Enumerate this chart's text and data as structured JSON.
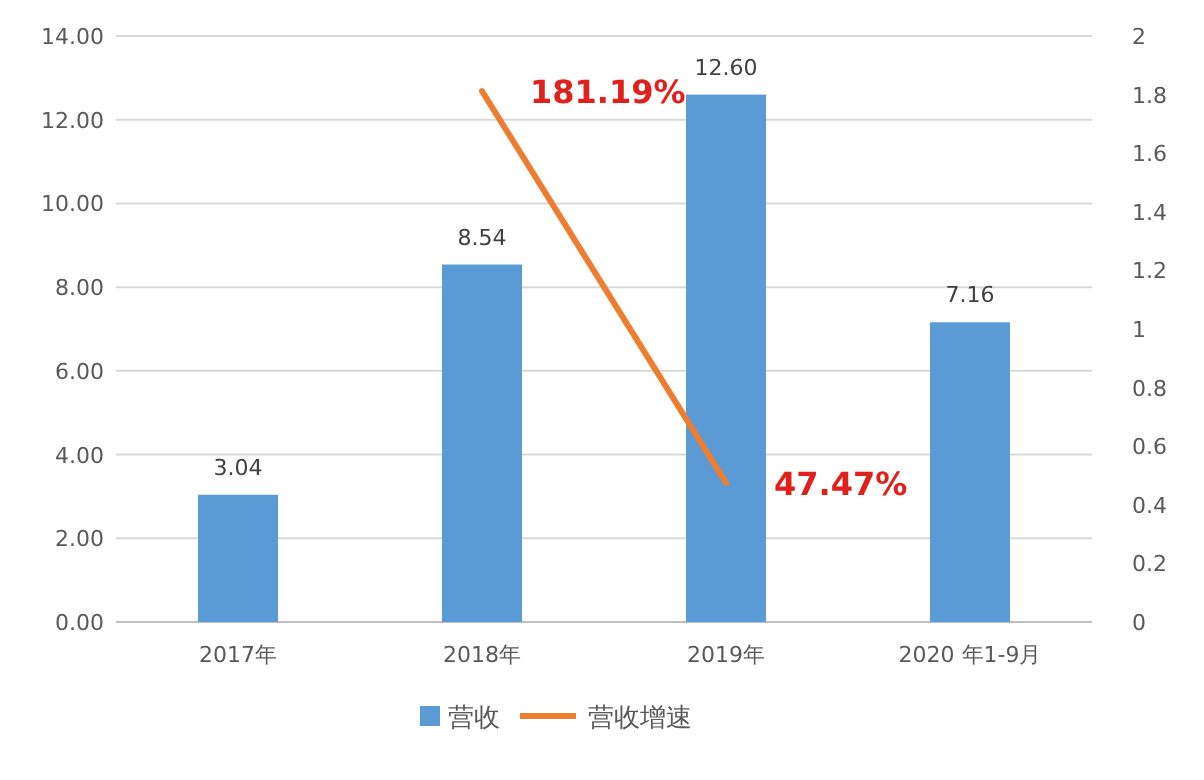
{
  "chart_data": {
    "type": "bar",
    "categories": [
      "2017年",
      "2018年",
      "2019年",
      "2020 年1-9月"
    ],
    "series": [
      {
        "name": "营收",
        "color": "#5b9bd5",
        "values": [
          3.04,
          8.54,
          12.6,
          7.16
        ],
        "value_labels": [
          "3.04",
          "8.54",
          "12.60",
          "7.16"
        ]
      },
      {
        "name": "营收增速",
        "type": "line",
        "axis": "y2",
        "color": "#ed7d31",
        "marker": "none",
        "values": [
          null,
          1.8119,
          0.4747,
          null
        ],
        "value_labels": [
          null,
          "181.19%",
          "47.47%",
          null
        ]
      }
    ],
    "ylim": [
      0,
      14
    ],
    "yticks": [
      {
        "value": 0,
        "label": "0.00"
      },
      {
        "value": 2,
        "label": "2.00"
      },
      {
        "value": 4,
        "label": "4.00"
      },
      {
        "value": 6,
        "label": "6.00"
      },
      {
        "value": 8,
        "label": "8.00"
      },
      {
        "value": 10,
        "label": "10.00"
      },
      {
        "value": 12,
        "label": "12.00"
      },
      {
        "value": 14,
        "label": "14.00"
      }
    ],
    "y2lim": [
      0,
      2
    ],
    "y2ticks": [
      0,
      0.2,
      0.4,
      0.6,
      0.8,
      1,
      1.2,
      1.4,
      1.6,
      1.8,
      2
    ],
    "grid": "y",
    "legend": "bottom"
  }
}
